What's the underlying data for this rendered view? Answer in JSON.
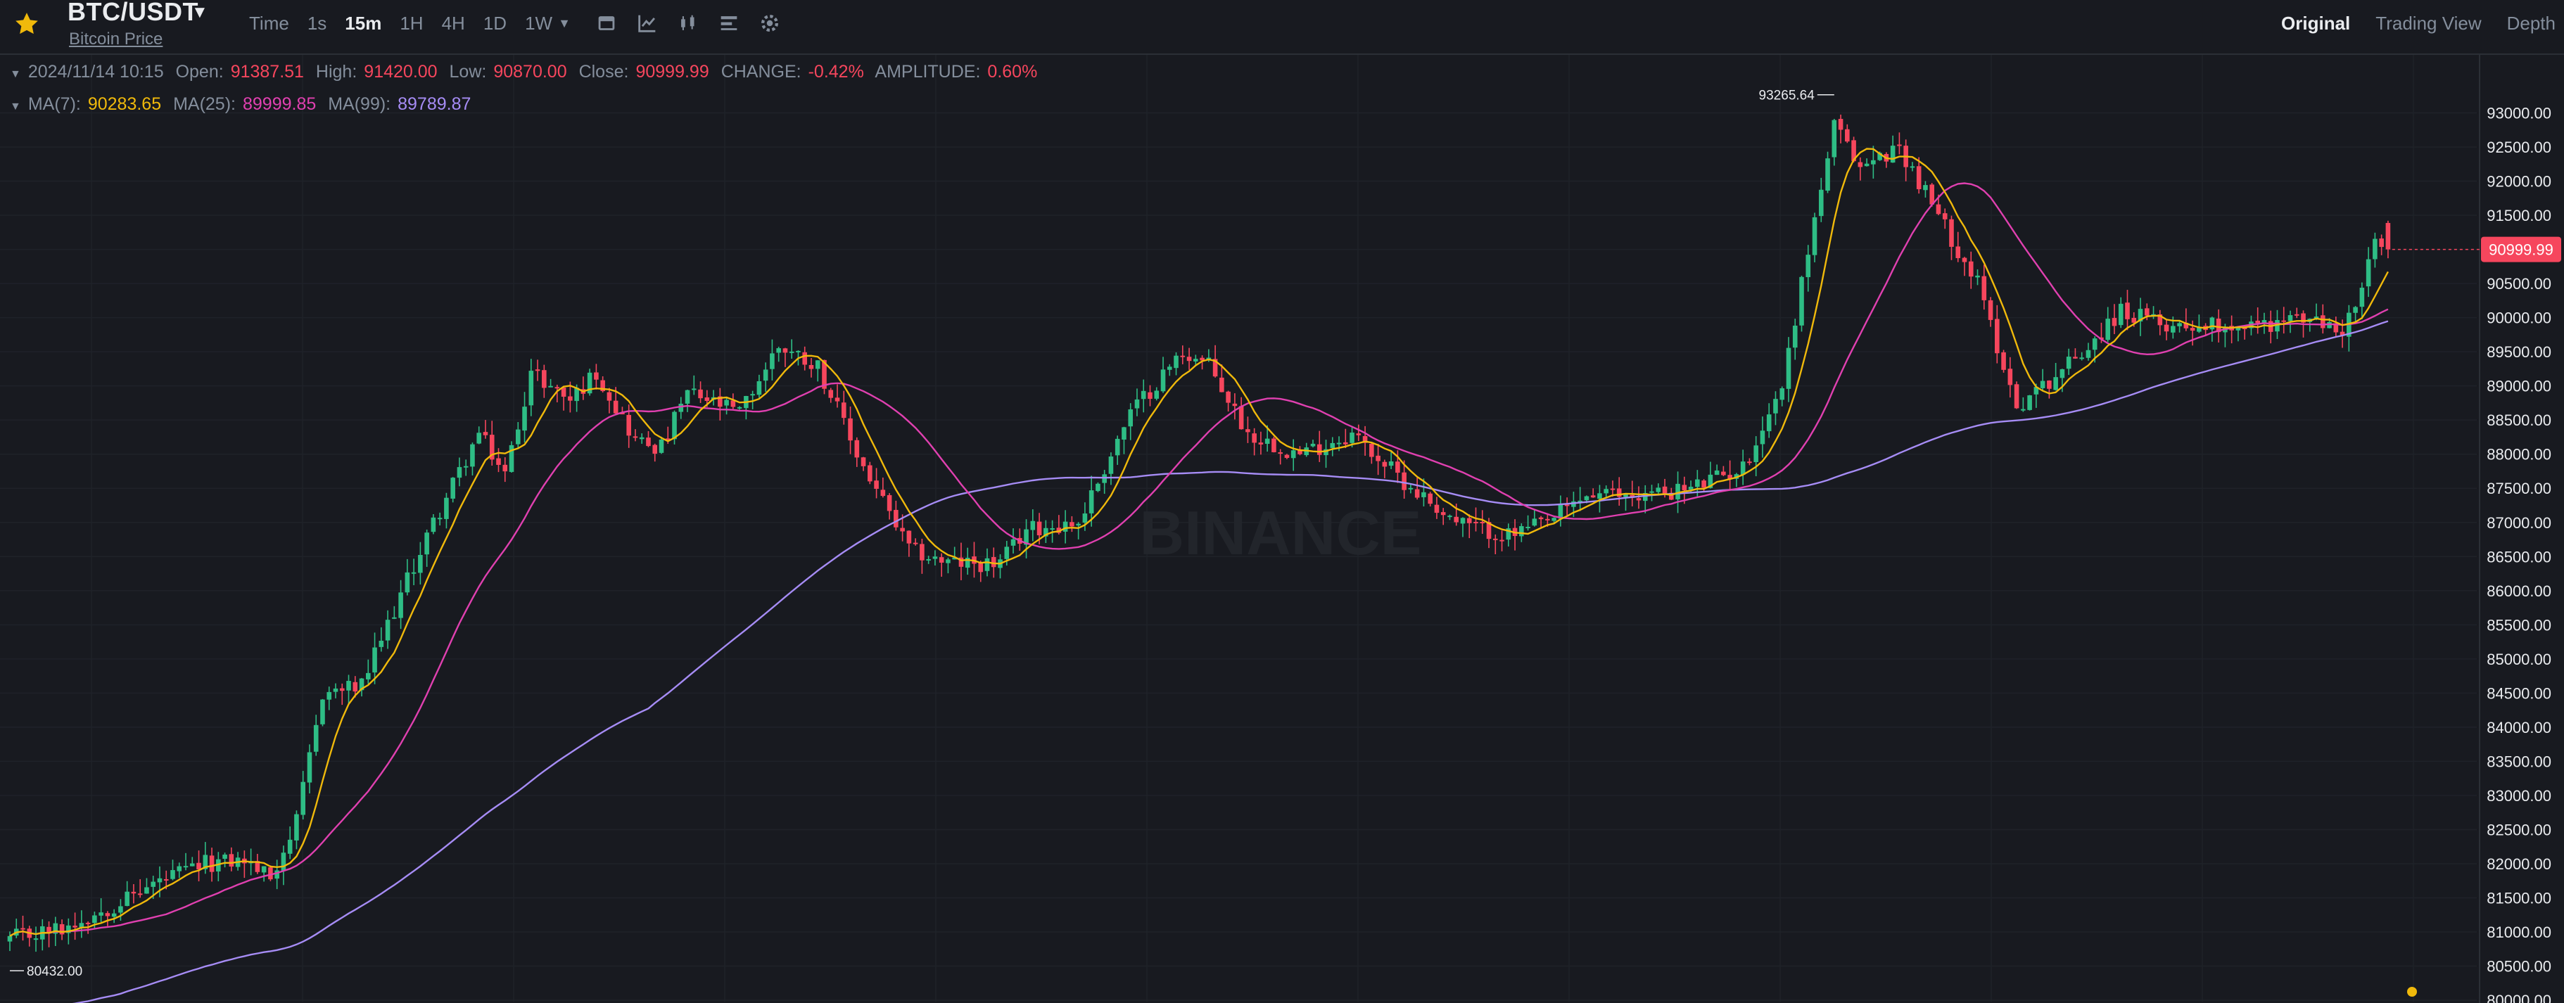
{
  "header": {
    "pair": "BTC/USDT",
    "subtitle": "Bitcoin Price",
    "intervals": [
      "Time",
      "1s",
      "15m",
      "1H",
      "4H",
      "1D",
      "1W"
    ],
    "active_interval": "15m",
    "views": [
      "Original",
      "Trading View",
      "Depth"
    ],
    "active_view": "Original"
  },
  "ohlc": {
    "date": "2024/11/14 10:15",
    "open_label": "Open:",
    "open": "91387.51",
    "high_label": "High:",
    "high": "91420.00",
    "low_label": "Low:",
    "low": "90870.00",
    "close_label": "Close:",
    "close": "90999.99",
    "change_label": "CHANGE:",
    "change": "-0.42%",
    "amplitude_label": "AMPLITUDE:",
    "amplitude": "0.60%"
  },
  "ma": {
    "ma7_label": "MA(7):",
    "ma7": "90283.65",
    "ma25_label": "MA(25):",
    "ma25": "89999.85",
    "ma99_label": "MA(99):",
    "ma99": "89789.87"
  },
  "watermark": "BINANCE",
  "colors": {
    "up": "#2ebd85",
    "down": "#f6465d",
    "ma7": "#f0b90b",
    "ma25": "#e040b0",
    "ma99": "#a68cf5",
    "background": "#181a20"
  },
  "chart_data": {
    "type": "candlestick",
    "y_axis_ticks": [
      93000,
      92500,
      92000,
      91500,
      91000,
      90500,
      90000,
      89500,
      89000,
      88500,
      88000,
      87500,
      87000,
      86500,
      86000,
      85500,
      85000,
      84500,
      84000,
      83500,
      83000,
      82500,
      82000,
      81500,
      81000,
      80500,
      80000
    ],
    "ylim": [
      79980,
      93850
    ],
    "high_marker": "93265.64",
    "low_marker": "80432.00",
    "last_price": "90999.99",
    "close_anchors": [
      [
        0,
        80900
      ],
      [
        8,
        81050
      ],
      [
        16,
        81400
      ],
      [
        22,
        81700
      ],
      [
        30,
        82000
      ],
      [
        36,
        82050
      ],
      [
        40,
        81800
      ],
      [
        44,
        82600
      ],
      [
        48,
        84500
      ],
      [
        54,
        84600
      ],
      [
        58,
        85500
      ],
      [
        64,
        86800
      ],
      [
        72,
        88300
      ],
      [
        76,
        87700
      ],
      [
        80,
        89200
      ],
      [
        86,
        88800
      ],
      [
        90,
        89200
      ],
      [
        96,
        88200
      ],
      [
        100,
        88100
      ],
      [
        104,
        88900
      ],
      [
        112,
        88600
      ],
      [
        118,
        89600
      ],
      [
        124,
        89300
      ],
      [
        130,
        88000
      ],
      [
        138,
        86600
      ],
      [
        144,
        86400
      ],
      [
        152,
        86400
      ],
      [
        156,
        86900
      ],
      [
        164,
        87000
      ],
      [
        172,
        88600
      ],
      [
        180,
        89500
      ],
      [
        184,
        89300
      ],
      [
        190,
        88300
      ],
      [
        198,
        88000
      ],
      [
        206,
        88300
      ],
      [
        214,
        87600
      ],
      [
        222,
        87000
      ],
      [
        230,
        86800
      ],
      [
        236,
        87000
      ],
      [
        242,
        87400
      ],
      [
        250,
        87400
      ],
      [
        258,
        87500
      ],
      [
        266,
        87800
      ],
      [
        272,
        89000
      ],
      [
        276,
        91000
      ],
      [
        280,
        92800
      ],
      [
        284,
        92200
      ],
      [
        290,
        92500
      ],
      [
        296,
        91500
      ],
      [
        302,
        90500
      ],
      [
        308,
        88700
      ],
      [
        312,
        89000
      ],
      [
        318,
        89500
      ],
      [
        324,
        90100
      ],
      [
        330,
        89900
      ],
      [
        338,
        89900
      ],
      [
        346,
        89900
      ],
      [
        352,
        90000
      ],
      [
        358,
        89800
      ],
      [
        361,
        90400
      ],
      [
        363,
        91100
      ],
      [
        365,
        90999.99
      ]
    ]
  }
}
